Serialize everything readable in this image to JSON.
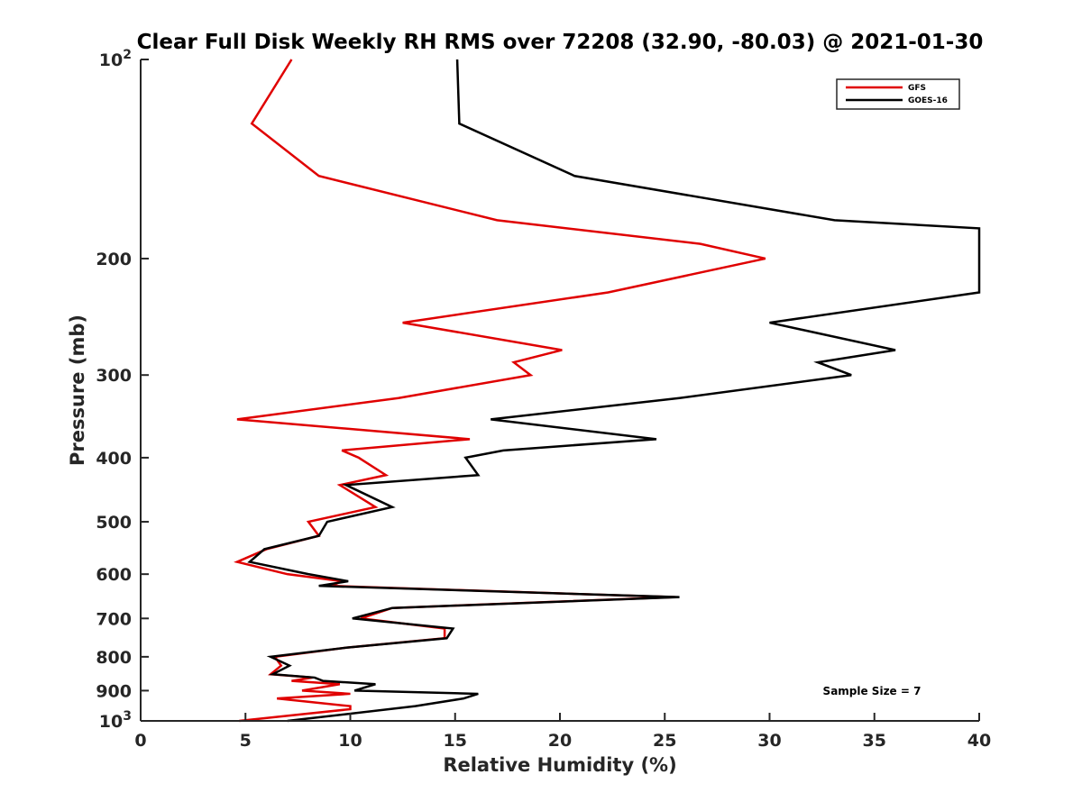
{
  "chart_data": {
    "type": "line",
    "title": "Clear Full Disk Weekly RH RMS over 72208 (32.90, -80.03) @ 2021-01-30",
    "xlabel": "Relative Humidity (%)",
    "ylabel": "Pressure (mb)",
    "xlim": [
      0,
      40
    ],
    "ylim": [
      100,
      1000
    ],
    "yscale": "log",
    "y_reversed": true,
    "grid": false,
    "legend_position": "top-right",
    "x_ticks": [
      0,
      5,
      10,
      15,
      20,
      25,
      30,
      35,
      40
    ],
    "y_ticks": [
      {
        "value": 100,
        "base": "10",
        "exp": "2"
      },
      {
        "value": 200,
        "label": "200"
      },
      {
        "value": 300,
        "label": "300"
      },
      {
        "value": 400,
        "label": "400"
      },
      {
        "value": 500,
        "label": "500"
      },
      {
        "value": 600,
        "label": "600"
      },
      {
        "value": 700,
        "label": "700"
      },
      {
        "value": 800,
        "label": "800"
      },
      {
        "value": 900,
        "label": "900"
      },
      {
        "value": 1000,
        "base": "10",
        "exp": "3"
      }
    ],
    "series": [
      {
        "name": "GFS",
        "color": "#e00000",
        "points": [
          [
            7.2,
            100
          ],
          [
            5.3,
            125
          ],
          [
            8.5,
            150
          ],
          [
            17,
            175
          ],
          [
            26.7,
            190
          ],
          [
            29.8,
            200
          ],
          [
            22.3,
            225
          ],
          [
            12.5,
            250
          ],
          [
            20.1,
            275
          ],
          [
            17.8,
            287
          ],
          [
            18.6,
            300
          ],
          [
            12.3,
            325
          ],
          [
            4.6,
            350
          ],
          [
            15.7,
            375
          ],
          [
            9.6,
            390
          ],
          [
            10.4,
            400
          ],
          [
            11.7,
            425
          ],
          [
            9.5,
            440
          ],
          [
            11.2,
            475
          ],
          [
            8,
            500
          ],
          [
            8.5,
            525
          ],
          [
            6,
            550
          ],
          [
            4.6,
            575
          ],
          [
            7,
            600
          ],
          [
            9.6,
            615
          ],
          [
            9.1,
            625
          ],
          [
            25.5,
            650
          ],
          [
            12,
            675
          ],
          [
            10.5,
            700
          ],
          [
            14.5,
            725
          ],
          [
            14.5,
            750
          ],
          [
            9.8,
            775
          ],
          [
            6.4,
            800
          ],
          [
            6.7,
            825
          ],
          [
            6.2,
            850
          ],
          [
            8.2,
            860
          ],
          [
            7.2,
            870
          ],
          [
            9.5,
            880
          ],
          [
            7.7,
            900
          ],
          [
            10,
            910
          ],
          [
            6.5,
            925
          ],
          [
            10,
            950
          ],
          [
            10,
            960
          ],
          [
            8,
            975
          ],
          [
            4.7,
            1000
          ]
        ]
      },
      {
        "name": "GOES-16",
        "color": "#000000",
        "points": [
          [
            15.1,
            100
          ],
          [
            15.2,
            125
          ],
          [
            20.7,
            150
          ],
          [
            33.1,
            175
          ],
          [
            40,
            180
          ],
          [
            40,
            225
          ],
          [
            30,
            250
          ],
          [
            36,
            275
          ],
          [
            32.3,
            287
          ],
          [
            33.9,
            300
          ],
          [
            25.7,
            325
          ],
          [
            16.7,
            350
          ],
          [
            24.6,
            375
          ],
          [
            17.3,
            390
          ],
          [
            15.5,
            400
          ],
          [
            16.1,
            425
          ],
          [
            9.8,
            440
          ],
          [
            12,
            475
          ],
          [
            8.9,
            500
          ],
          [
            8.5,
            525
          ],
          [
            5.9,
            550
          ],
          [
            5.2,
            575
          ],
          [
            8,
            600
          ],
          [
            9.9,
            615
          ],
          [
            8.5,
            625
          ],
          [
            25.7,
            650
          ],
          [
            12,
            675
          ],
          [
            10.1,
            700
          ],
          [
            14.9,
            725
          ],
          [
            14.6,
            750
          ],
          [
            9.8,
            775
          ],
          [
            6.2,
            800
          ],
          [
            7.1,
            825
          ],
          [
            6.3,
            850
          ],
          [
            8.3,
            860
          ],
          [
            8.7,
            870
          ],
          [
            11.2,
            880
          ],
          [
            10.2,
            900
          ],
          [
            16.1,
            910
          ],
          [
            15.4,
            925
          ],
          [
            13.1,
            950
          ],
          [
            7,
            1000
          ]
        ]
      }
    ],
    "annotation": "Sample Size = 7"
  }
}
